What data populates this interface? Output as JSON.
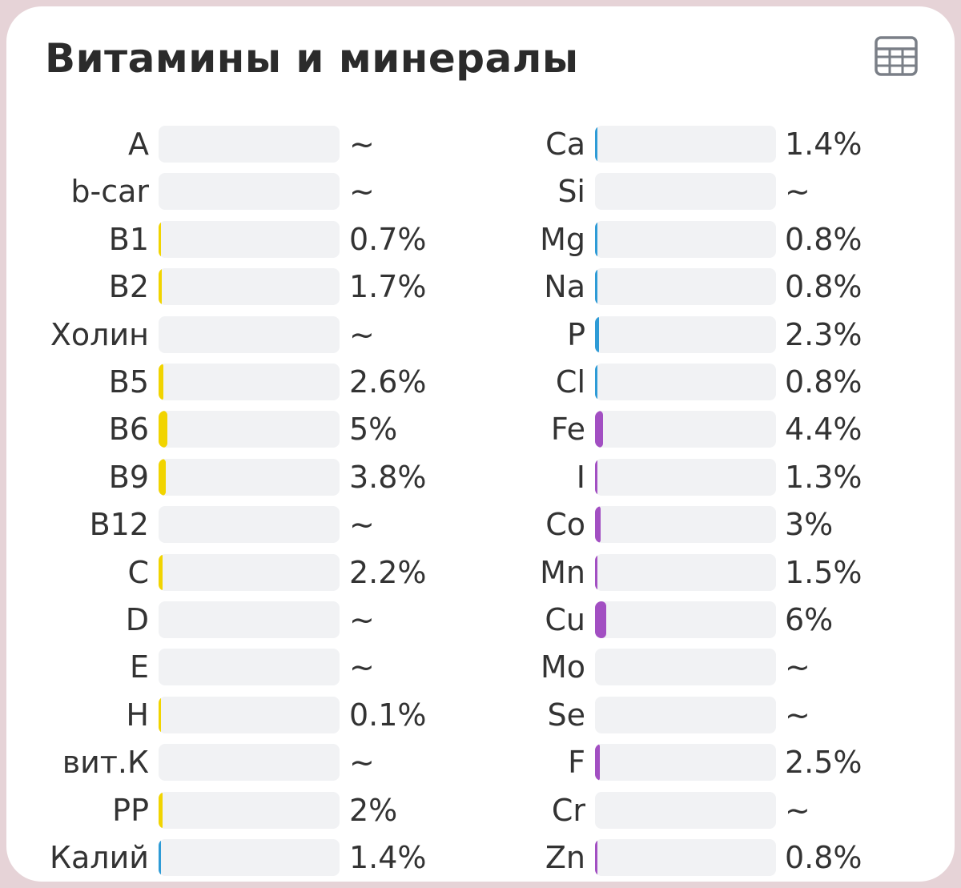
{
  "title": "Витамины и минералы",
  "icons": {
    "view_toggle": "table-icon"
  },
  "colors": {
    "vitamin": "#f1d400",
    "potassium": "#2e9bd6",
    "mineral_blue": "#2e9bd6",
    "mineral_purple": "#a24fc2",
    "track": "#f1f2f4"
  },
  "vitamins": [
    {
      "label": "A",
      "value": "~",
      "pct": 0,
      "color": "#f1d400"
    },
    {
      "label": "b-car",
      "value": "~",
      "pct": 0,
      "color": "#f1d400"
    },
    {
      "label": "B1",
      "value": "0.7%",
      "pct": 0.7,
      "color": "#f1d400"
    },
    {
      "label": "B2",
      "value": "1.7%",
      "pct": 1.7,
      "color": "#f1d400"
    },
    {
      "label": "Холин",
      "value": "~",
      "pct": 0,
      "color": "#f1d400"
    },
    {
      "label": "B5",
      "value": "2.6%",
      "pct": 2.6,
      "color": "#f1d400"
    },
    {
      "label": "B6",
      "value": "5%",
      "pct": 5,
      "color": "#f1d400"
    },
    {
      "label": "B9",
      "value": "3.8%",
      "pct": 3.8,
      "color": "#f1d400"
    },
    {
      "label": "B12",
      "value": "~",
      "pct": 0,
      "color": "#f1d400"
    },
    {
      "label": "C",
      "value": "2.2%",
      "pct": 2.2,
      "color": "#f1d400"
    },
    {
      "label": "D",
      "value": "~",
      "pct": 0,
      "color": "#f1d400"
    },
    {
      "label": "E",
      "value": "~",
      "pct": 0,
      "color": "#f1d400"
    },
    {
      "label": "H",
      "value": "0.1%",
      "pct": 0.1,
      "color": "#f1d400"
    },
    {
      "label": "вит.К",
      "value": "~",
      "pct": 0,
      "color": "#f1d400"
    },
    {
      "label": "PP",
      "value": "2%",
      "pct": 2,
      "color": "#f1d400"
    },
    {
      "label": "Калий",
      "value": "1.4%",
      "pct": 1.4,
      "color": "#2e9bd6"
    }
  ],
  "minerals": [
    {
      "label": "Ca",
      "value": "1.4%",
      "pct": 1.4,
      "color": "#2e9bd6"
    },
    {
      "label": "Si",
      "value": "~",
      "pct": 0,
      "color": "#2e9bd6"
    },
    {
      "label": "Mg",
      "value": "0.8%",
      "pct": 0.8,
      "color": "#2e9bd6"
    },
    {
      "label": "Na",
      "value": "0.8%",
      "pct": 0.8,
      "color": "#2e9bd6"
    },
    {
      "label": "P",
      "value": "2.3%",
      "pct": 2.3,
      "color": "#2e9bd6"
    },
    {
      "label": "Cl",
      "value": "0.8%",
      "pct": 0.8,
      "color": "#2e9bd6"
    },
    {
      "label": "Fe",
      "value": "4.4%",
      "pct": 4.4,
      "color": "#a24fc2"
    },
    {
      "label": "I",
      "value": "1.3%",
      "pct": 1.3,
      "color": "#a24fc2"
    },
    {
      "label": "Co",
      "value": "3%",
      "pct": 3,
      "color": "#a24fc2"
    },
    {
      "label": "Mn",
      "value": "1.5%",
      "pct": 1.5,
      "color": "#a24fc2"
    },
    {
      "label": "Cu",
      "value": "6%",
      "pct": 6,
      "color": "#a24fc2"
    },
    {
      "label": "Mo",
      "value": "~",
      "pct": 0,
      "color": "#a24fc2"
    },
    {
      "label": "Se",
      "value": "~",
      "pct": 0,
      "color": "#a24fc2"
    },
    {
      "label": "F",
      "value": "2.5%",
      "pct": 2.5,
      "color": "#a24fc2"
    },
    {
      "label": "Cr",
      "value": "~",
      "pct": 0,
      "color": "#a24fc2"
    },
    {
      "label": "Zn",
      "value": "0.8%",
      "pct": 0.8,
      "color": "#a24fc2"
    }
  ]
}
